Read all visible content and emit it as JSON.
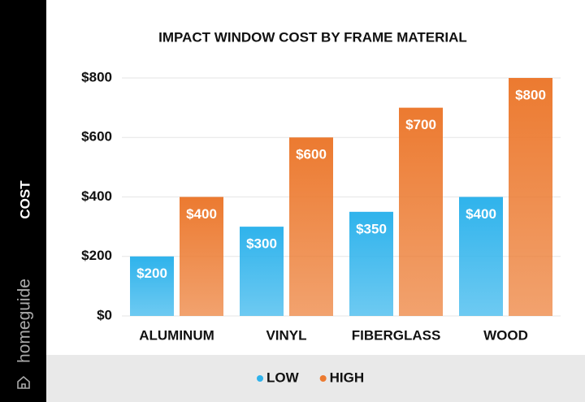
{
  "brand": "homeguide",
  "chart_data": {
    "type": "bar",
    "title": "IMPACT WINDOW COST BY FRAME MATERIAL",
    "y_label": "COST",
    "categories": [
      "ALUMINUM",
      "VINYL",
      "FIBERGLASS",
      "WOOD"
    ],
    "series": [
      {
        "name": "LOW",
        "color": "#2fb3ec",
        "values": [
          200,
          300,
          350,
          400
        ],
        "value_labels": [
          "$200",
          "$300",
          "$350",
          "$400"
        ]
      },
      {
        "name": "HIGH",
        "color": "#ec7a30",
        "values": [
          400,
          600,
          700,
          800
        ],
        "value_labels": [
          "$400",
          "$600",
          "$700",
          "$800"
        ]
      }
    ],
    "ylim": [
      0,
      800
    ],
    "yticks": [
      {
        "value": 0,
        "label": "$0"
      },
      {
        "value": 200,
        "label": "$200"
      },
      {
        "value": 400,
        "label": "$400"
      },
      {
        "value": 600,
        "label": "$600"
      },
      {
        "value": 800,
        "label": "$800"
      }
    ],
    "grid": true,
    "legend": "bottom"
  }
}
